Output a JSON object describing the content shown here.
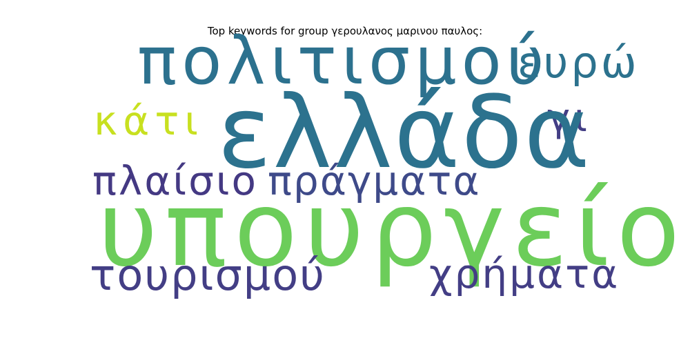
{
  "title": "Top keywords for group γερουλανος μαρινου παυλος:",
  "words": [
    {
      "text": "πολιτισμού",
      "color": "#2c718e"
    },
    {
      "text": "ευρώ",
      "color": "#2c728e"
    },
    {
      "text": "γι",
      "color": "#433e85"
    },
    {
      "text": "κάτι",
      "color": "#c8e020"
    },
    {
      "text": "ελλάδα",
      "color": "#2c728e"
    },
    {
      "text": "πλαίσιο",
      "color": "#443983"
    },
    {
      "text": "πράγματα",
      "color": "#3e4a89"
    },
    {
      "text": "υπουργείο",
      "color": "#6ccd5a"
    },
    {
      "text": "τουρισμού",
      "color": "#433e85"
    },
    {
      "text": "χρήματα",
      "color": "#433e85"
    }
  ]
}
